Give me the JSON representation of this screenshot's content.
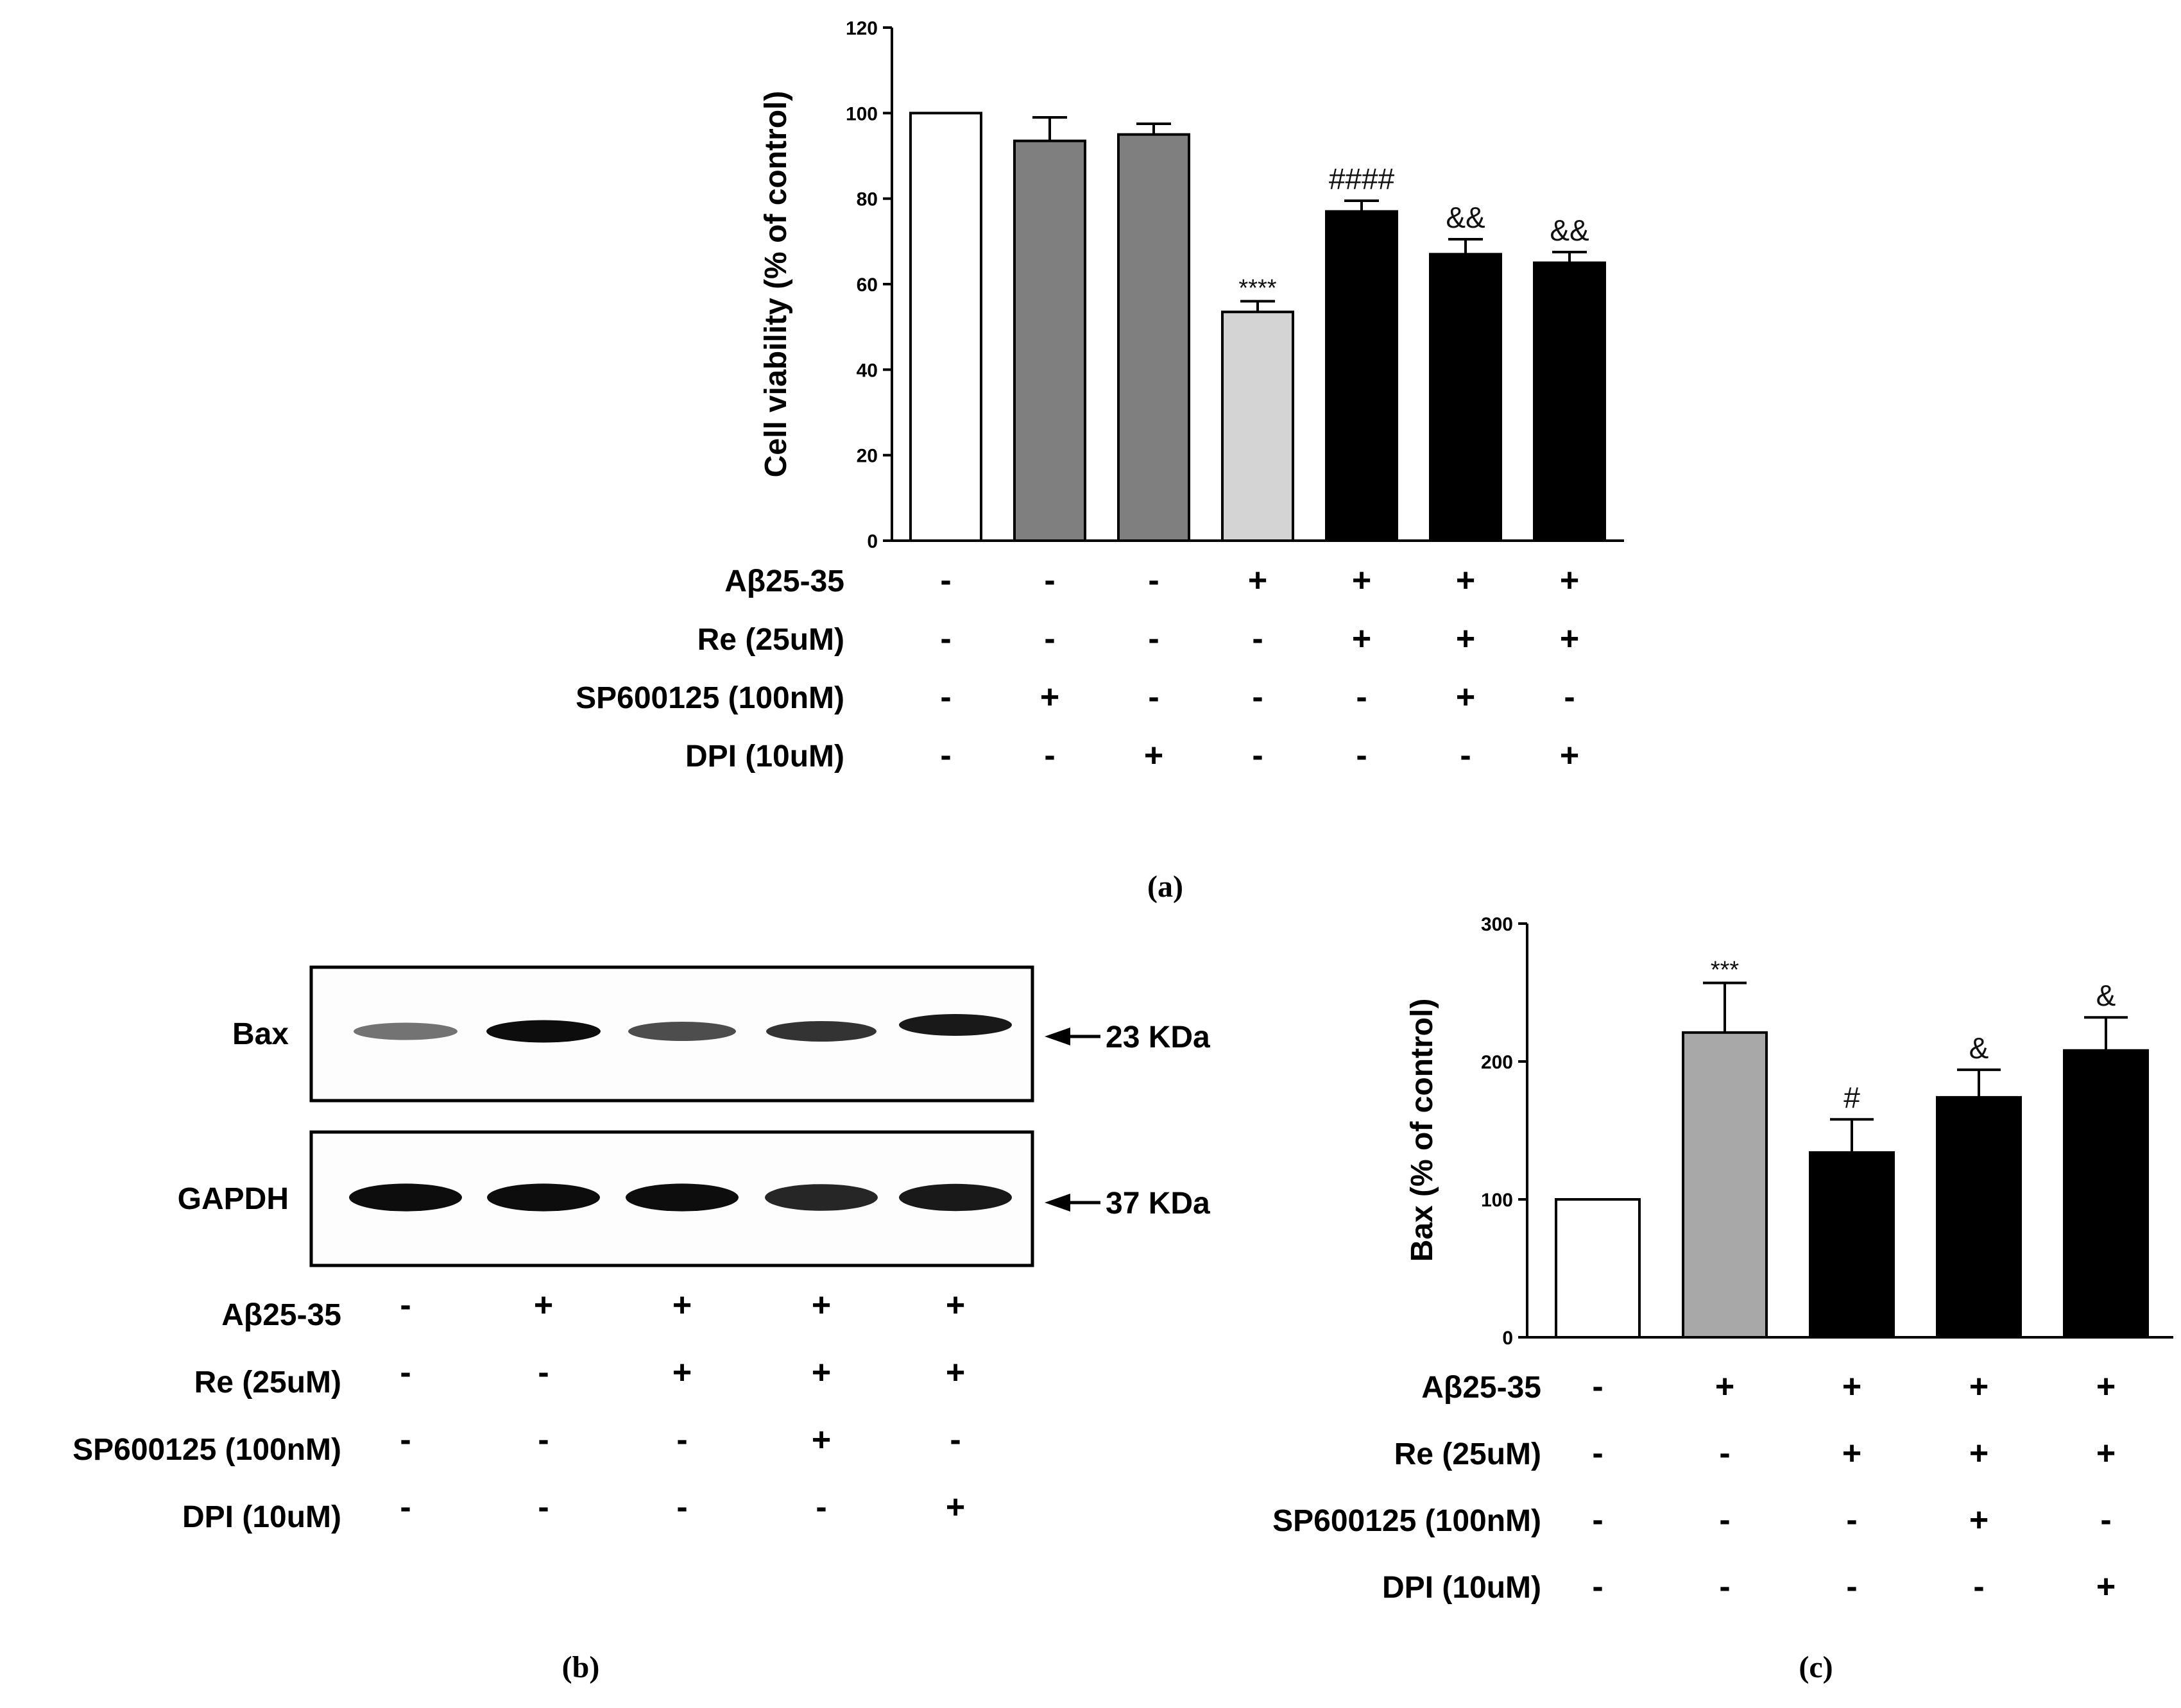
{
  "chart_data": [
    {
      "panel": "(a)",
      "type": "bar",
      "ylabel": "Cell viability (% of control)",
      "ylim": [
        0,
        120
      ],
      "yticks": [
        "0",
        "20",
        "40",
        "60",
        "80",
        "100",
        "120"
      ],
      "values": [
        100,
        93.5,
        95,
        53.5,
        77,
        67,
        65
      ],
      "errors": [
        0,
        5.5,
        2.5,
        2.5,
        2.5,
        3.5,
        2.5
      ],
      "bar_colors": [
        "#ffffff",
        "#7f7f7f",
        "#7f7f7f",
        "#d4d4d4",
        "#000000",
        "#000000",
        "#000000"
      ],
      "annotations": [
        "",
        "",
        "",
        "****",
        "####",
        "&&",
        "&&"
      ],
      "conditions": [
        {
          "label": "Aβ25-35",
          "signs": [
            "-",
            "-",
            "-",
            "+",
            "+",
            "+",
            "+"
          ]
        },
        {
          "label": "Re (25uM)",
          "signs": [
            "-",
            "-",
            "-",
            "-",
            "+",
            "+",
            "+"
          ]
        },
        {
          "label": "SP600125 (100nM)",
          "signs": [
            "-",
            "+",
            "-",
            "-",
            "-",
            "+",
            "-"
          ]
        },
        {
          "label": "DPI (10uM)",
          "signs": [
            "-",
            "-",
            "+",
            "-",
            "-",
            "-",
            "+"
          ]
        }
      ]
    },
    {
      "panel": "(c)",
      "type": "bar",
      "ylabel": "Bax (% of control)",
      "ylim": [
        0,
        300
      ],
      "yticks": [
        "0",
        "100",
        "200",
        "300"
      ],
      "values": [
        100,
        221,
        134,
        174,
        208
      ],
      "errors": [
        0,
        36,
        24,
        20,
        24
      ],
      "bar_colors": [
        "#ffffff",
        "#a8a8a8",
        "#000000",
        "#000000",
        "#000000"
      ],
      "annotations": [
        "",
        "***",
        "#",
        "&",
        "&"
      ],
      "conditions": [
        {
          "label": "Aβ25-35",
          "signs": [
            "-",
            "+",
            "+",
            "+",
            "+"
          ]
        },
        {
          "label": "Re (25uM)",
          "signs": [
            "-",
            "-",
            "+",
            "+",
            "+"
          ]
        },
        {
          "label": "SP600125 (100nM)",
          "signs": [
            "-",
            "-",
            "-",
            "+",
            "-"
          ]
        },
        {
          "label": "DPI (10uM)",
          "signs": [
            "-",
            "-",
            "-",
            "-",
            "+"
          ]
        }
      ]
    }
  ],
  "blot": {
    "panel": "(b)",
    "rows": [
      {
        "label": "Bax",
        "marker": "23 KDa",
        "band_intensity": [
          0.55,
          0.95,
          0.7,
          0.8,
          0.9
        ]
      },
      {
        "label": "GAPDH",
        "marker": "37 KDa",
        "band_intensity": [
          0.95,
          0.95,
          0.95,
          0.85,
          0.9
        ]
      }
    ],
    "conditions": [
      {
        "label": "Aβ25-35",
        "signs": [
          "-",
          "+",
          "+",
          "+",
          "+"
        ]
      },
      {
        "label": "Re (25uM)",
        "signs": [
          "-",
          "-",
          "+",
          "+",
          "+"
        ]
      },
      {
        "label": "SP600125 (100nM)",
        "signs": [
          "-",
          "-",
          "-",
          "+",
          "-"
        ]
      },
      {
        "label": "DPI (10uM)",
        "signs": [
          "-",
          "-",
          "-",
          "-",
          "+"
        ]
      }
    ]
  },
  "captions": {
    "a": "(a)",
    "b": "(b)",
    "c": "(c)"
  }
}
